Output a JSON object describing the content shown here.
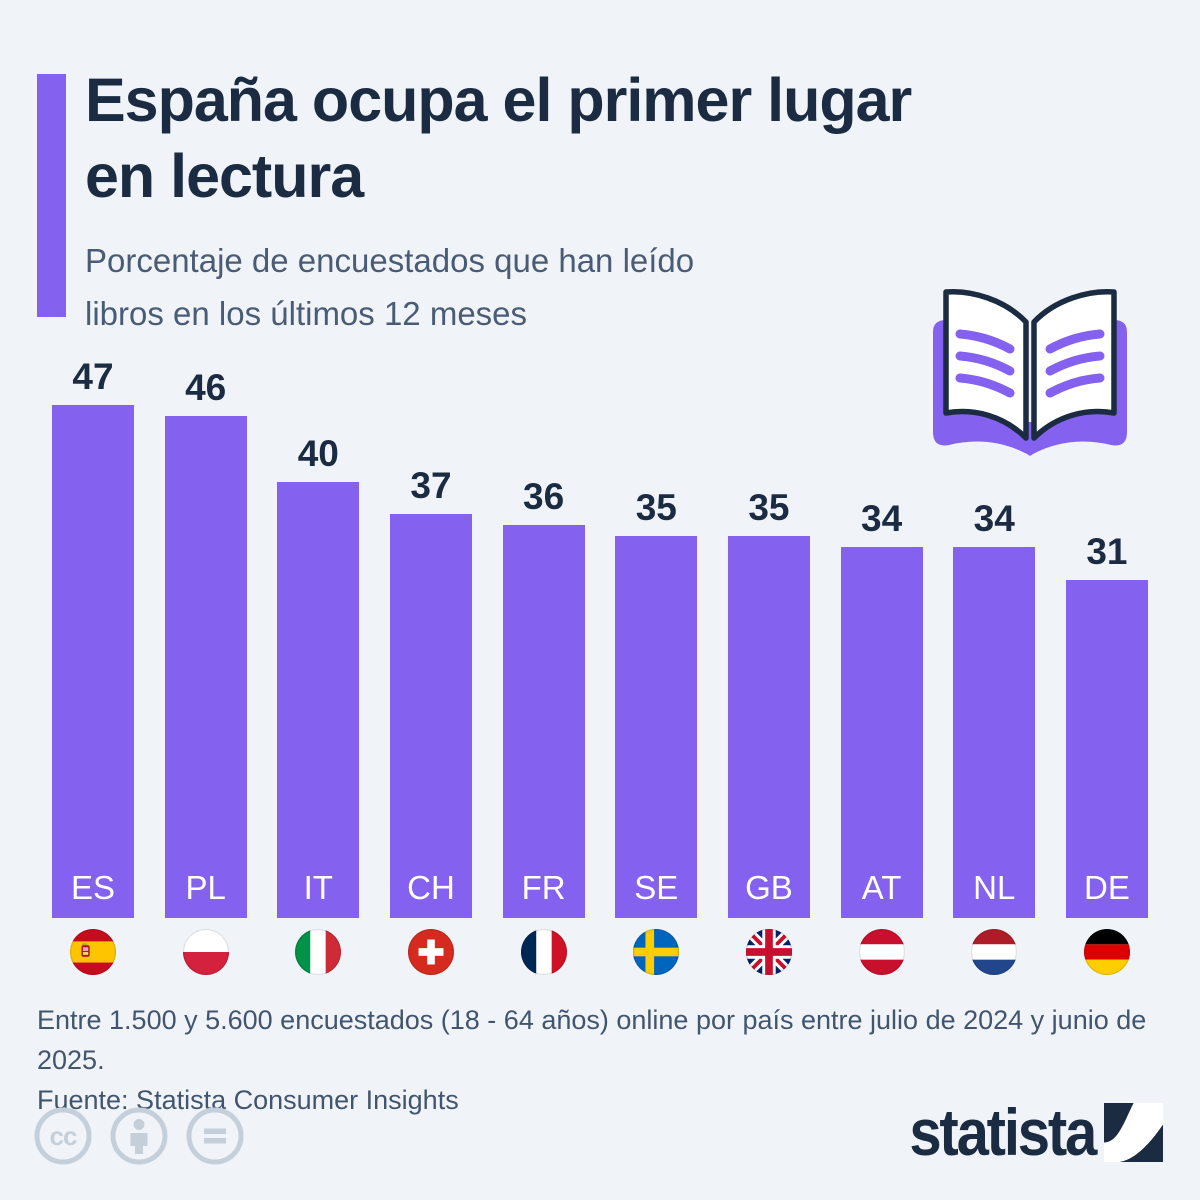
{
  "page": {
    "background": "#f0f4f8",
    "accent_color": "#8561F0",
    "title_color": "#1a2b42",
    "text_color": "#42556e"
  },
  "header": {
    "title_line1": "España ocupa el primer lugar",
    "title_line2": "en lectura",
    "subtitle_line1": "Porcentaje de encuestados que han leído",
    "subtitle_line2": "libros en los últimos 12 meses",
    "icon": "open-book-icon"
  },
  "chart_data": {
    "type": "bar",
    "title": "Porcentaje de encuestados que han leído libros en los últimos 12 meses",
    "categories": [
      "ES",
      "PL",
      "IT",
      "CH",
      "FR",
      "SE",
      "GB",
      "AT",
      "NL",
      "DE"
    ],
    "values": [
      47,
      46,
      40,
      37,
      36,
      35,
      35,
      34,
      34,
      31
    ],
    "flags": [
      "es",
      "pl",
      "it",
      "ch",
      "fr",
      "se",
      "gb",
      "at",
      "nl",
      "de"
    ],
    "bar_color": "#8561F0",
    "value_label_color": "#1a2b42",
    "category_label_color": "#ffffff",
    "xlabel": "",
    "ylabel": "",
    "ylim": [
      0,
      47
    ],
    "grid": false,
    "legend": false
  },
  "footer": {
    "note": "Entre 1.500 y 5.600 encuestados (18 - 64 años) online por país entre julio de 2024 y junio de 2025.",
    "source": "Fuente: Statista Consumer Insights",
    "license_icons": [
      "cc-icon",
      "person-icon",
      "equals-icon"
    ],
    "brand": "statista"
  }
}
